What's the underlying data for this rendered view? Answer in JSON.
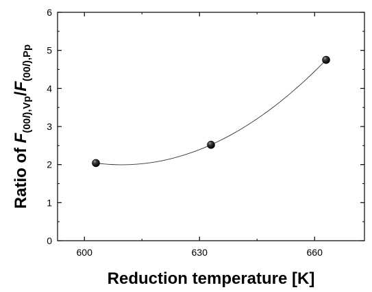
{
  "chart_data": {
    "type": "scatter",
    "xlabel": "Reduction temperature [K]",
    "ylabel": {
      "prefix": "Ratio of ",
      "f1": "F",
      "sub1": "(00",
      "sub1_l": "l",
      "sub1_end": "),Vp",
      "slash": "/",
      "f2": "F",
      "sub2": "(00",
      "sub2_l": "l",
      "sub2_end": "),Pp"
    },
    "xlim": [
      593,
      673
    ],
    "ylim": [
      0,
      6
    ],
    "xticks": [
      600,
      630,
      660
    ],
    "yticks": [
      0,
      1,
      2,
      3,
      4,
      5,
      6
    ],
    "points": [
      {
        "x": 603,
        "y": 2.04
      },
      {
        "x": 633,
        "y": 2.52
      },
      {
        "x": 663,
        "y": 4.75
      }
    ],
    "fit_curve": {
      "style": "smooth quadratic trend line",
      "x_range": [
        603,
        663
      ]
    }
  }
}
